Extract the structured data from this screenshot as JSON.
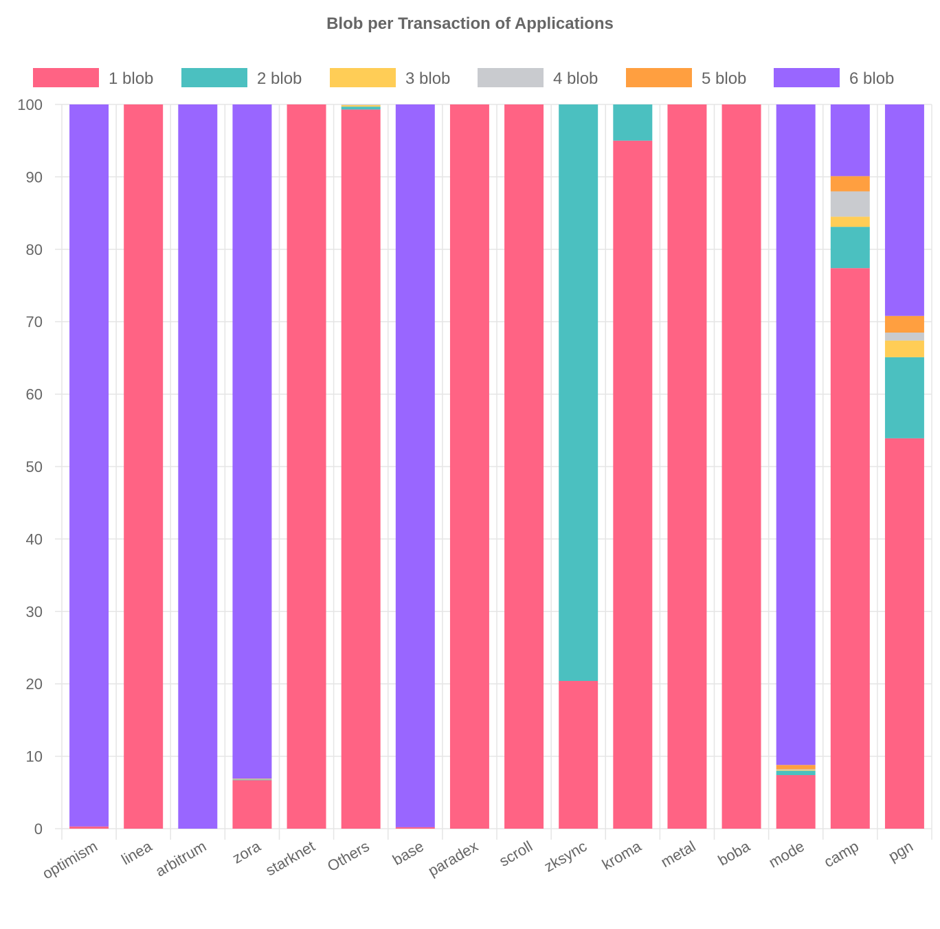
{
  "chart_data": {
    "type": "bar",
    "stacked": true,
    "title": "Blob per Transaction of Applications",
    "xlabel": "",
    "ylabel": "",
    "ylim": [
      0,
      100
    ],
    "yticks": [
      0,
      10,
      20,
      30,
      40,
      50,
      60,
      70,
      80,
      90,
      100
    ],
    "grid": true,
    "legend_position": "top",
    "categories": [
      "optimism",
      "linea",
      "arbitrum",
      "zora",
      "starknet",
      "Others",
      "base",
      "paradex",
      "scroll",
      "zksync",
      "kroma",
      "metal",
      "boba",
      "mode",
      "camp",
      "pgn"
    ],
    "series": [
      {
        "name": "1 blob",
        "color": "#ff6384",
        "values": [
          0.3,
          100,
          0,
          6.7,
          100,
          99.3,
          0.2,
          100,
          100,
          20.4,
          95,
          100,
          100,
          7.4,
          77.4,
          53.9
        ]
      },
      {
        "name": "2 blob",
        "color": "#4bc0c0",
        "values": [
          0,
          0,
          0,
          0.1,
          0,
          0.4,
          0,
          0,
          0,
          79.6,
          5,
          0,
          0,
          0.6,
          5.7,
          11.2
        ]
      },
      {
        "name": "3 blob",
        "color": "#ffcd56",
        "values": [
          0,
          0,
          0,
          0.1,
          0,
          0.2,
          0,
          0,
          0,
          0,
          0,
          0,
          0,
          0.1,
          1.4,
          2.3
        ]
      },
      {
        "name": "4 blob",
        "color": "#c9cbcf",
        "values": [
          0,
          0,
          0,
          0,
          0,
          0.1,
          0,
          0,
          0,
          0,
          0,
          0,
          0,
          0.1,
          3.5,
          1.1
        ]
      },
      {
        "name": "5 blob",
        "color": "#ff9f40",
        "values": [
          0,
          0,
          0,
          0,
          0,
          0,
          0,
          0,
          0,
          0,
          0,
          0,
          0,
          0.6,
          2.1,
          2.3
        ]
      },
      {
        "name": "6 blob",
        "color": "#9966ff",
        "values": [
          99.7,
          0,
          100,
          93.1,
          0,
          0,
          99.8,
          0,
          0,
          0,
          0,
          0,
          0,
          91.2,
          9.9,
          29.2
        ]
      }
    ]
  }
}
